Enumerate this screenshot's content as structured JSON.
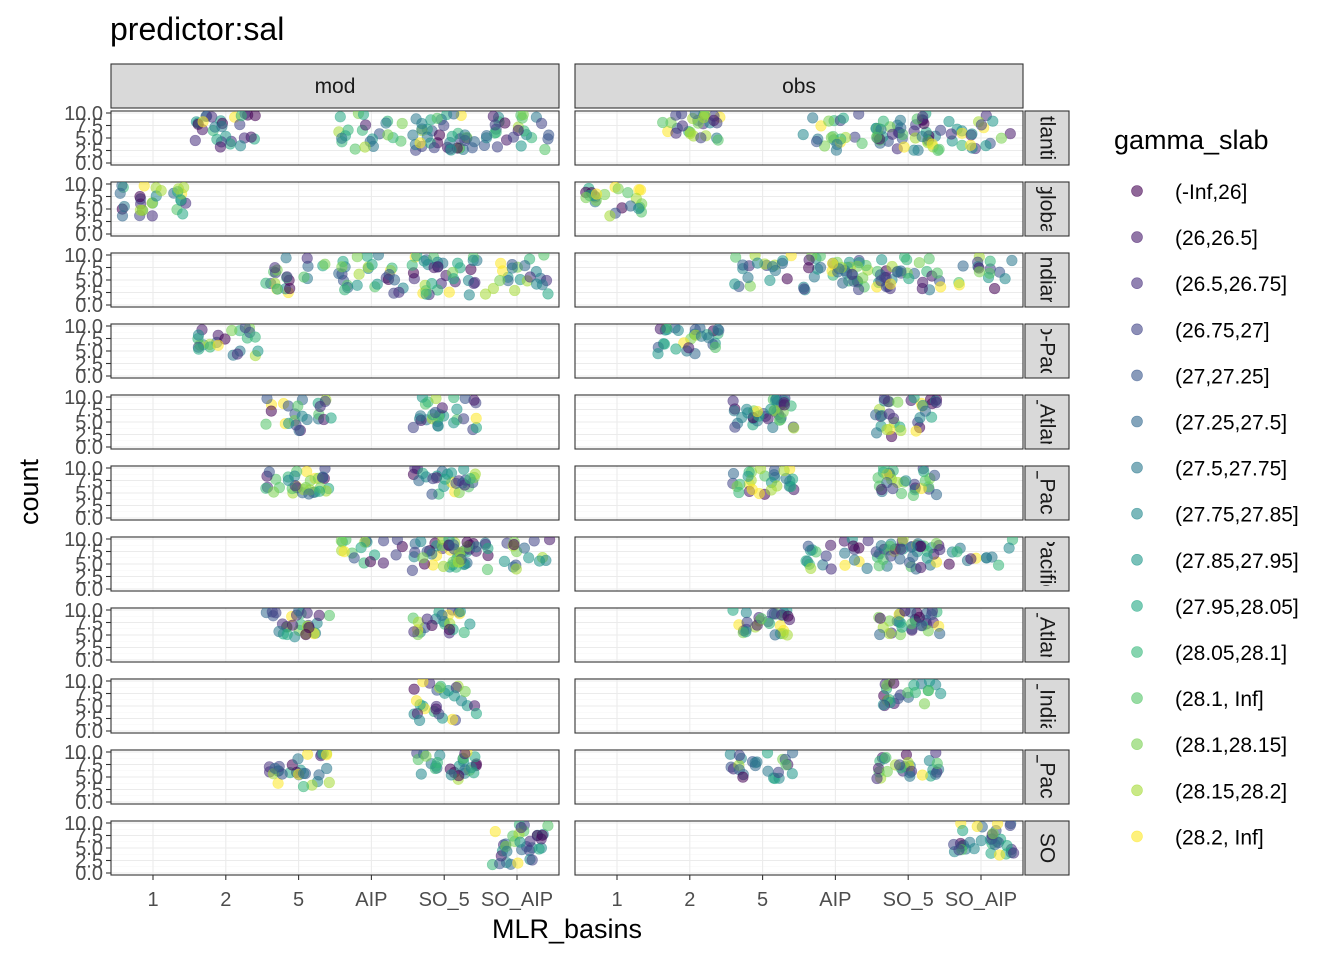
{
  "title": "predictor:sal",
  "chart_data": {
    "type": "scatter",
    "title": "predictor:sal",
    "xlabel": "MLR_basins",
    "ylabel": "count",
    "x_categories": [
      "1",
      "2",
      "5",
      "AIP",
      "SO_5",
      "SO_AIP"
    ],
    "y_ticks": [
      "0.0",
      "2.5",
      "5.0",
      "7.5",
      "10.0"
    ],
    "ylim": [
      0,
      10
    ],
    "grid": true,
    "col_facets": [
      "mod",
      "obs"
    ],
    "row_facets": [
      "Atlantic",
      "global",
      "Indian",
      "Indo-Pacific",
      "N_Atlantic",
      "N_Pacific",
      "Pacific",
      "S_Atlantic",
      "S_Indian",
      "S_Pacific",
      "SO"
    ],
    "row_facets_visible": [
      "tlanti",
      "globa",
      "ndiar",
      "o-Pac",
      "_Atlan",
      "_Paci",
      "Pacific",
      "_Atlan",
      "_India",
      "_Paci",
      "SO"
    ],
    "legend": {
      "title": "gamma_slab",
      "position": "right",
      "entries": [
        "(-Inf,26]",
        "(26,26.5]",
        "(26.5,26.75]",
        "(26.75,27]",
        "(27,27.25]",
        "(27.25,27.5]",
        "(27.5,27.75]",
        "(27.75,27.85]",
        "(27.85,27.95]",
        "(27.95,28.05]",
        "(28.05,28.1]",
        "(28.1, Inf]",
        "(28.1,28.15]",
        "(28.15,28.2]",
        "(28.2, Inf]"
      ],
      "colors": [
        "#440154",
        "#481a6c",
        "#472f7d",
        "#414487",
        "#39568c",
        "#31688e",
        "#2a788e",
        "#23888e",
        "#1f988b",
        "#22a884",
        "#35b779",
        "#54c568",
        "#7ad151",
        "#a5db36",
        "#fde725"
      ]
    },
    "point_alpha": 0.55,
    "points_note": "jittered points with y values between 2.5 and 10; each group is drawn as a jittered cloud",
    "groups": [
      {
        "row": 0,
        "col": 0,
        "x_range": [
          "2",
          "2"
        ],
        "y_range": [
          2.5,
          10
        ],
        "n": 30
      },
      {
        "row": 0,
        "col": 0,
        "x_range": [
          "AIP",
          "SO_AIP"
        ],
        "y_range": [
          2.5,
          10
        ],
        "n": 90
      },
      {
        "row": 0,
        "col": 1,
        "x_range": [
          "2",
          "2"
        ],
        "y_range": [
          4.5,
          10
        ],
        "n": 30
      },
      {
        "row": 0,
        "col": 1,
        "x_range": [
          "AIP",
          "SO_AIP"
        ],
        "y_range": [
          2.5,
          10
        ],
        "n": 90
      },
      {
        "row": 1,
        "col": 0,
        "x_range": [
          "1",
          "1"
        ],
        "y_range": [
          3.5,
          10
        ],
        "n": 30
      },
      {
        "row": 1,
        "col": 1,
        "x_range": [
          "1",
          "1"
        ],
        "y_range": [
          3.5,
          10
        ],
        "n": 25
      },
      {
        "row": 2,
        "col": 0,
        "x_range": [
          "5",
          "SO_AIP"
        ],
        "y_range": [
          2,
          10
        ],
        "n": 110
      },
      {
        "row": 2,
        "col": 1,
        "x_range": [
          "5",
          "SO_AIP"
        ],
        "y_range": [
          3,
          10
        ],
        "n": 110
      },
      {
        "row": 3,
        "col": 0,
        "x_range": [
          "2",
          "2"
        ],
        "y_range": [
          4,
          10
        ],
        "n": 25
      },
      {
        "row": 3,
        "col": 1,
        "x_range": [
          "2",
          "2"
        ],
        "y_range": [
          4,
          10
        ],
        "n": 30
      },
      {
        "row": 4,
        "col": 0,
        "x_range": [
          "5",
          "5"
        ],
        "y_range": [
          3,
          10
        ],
        "n": 25
      },
      {
        "row": 4,
        "col": 0,
        "x_range": [
          "SO_5",
          "SO_5"
        ],
        "y_range": [
          3.5,
          10
        ],
        "n": 30
      },
      {
        "row": 4,
        "col": 1,
        "x_range": [
          "5",
          "5"
        ],
        "y_range": [
          3.5,
          10
        ],
        "n": 40
      },
      {
        "row": 4,
        "col": 1,
        "x_range": [
          "SO_5",
          "SO_5"
        ],
        "y_range": [
          2,
          10
        ],
        "n": 35
      },
      {
        "row": 5,
        "col": 0,
        "x_range": [
          "5",
          "5"
        ],
        "y_range": [
          4.5,
          10
        ],
        "n": 35
      },
      {
        "row": 5,
        "col": 0,
        "x_range": [
          "SO_5",
          "SO_5"
        ],
        "y_range": [
          4.5,
          10
        ],
        "n": 30
      },
      {
        "row": 5,
        "col": 1,
        "x_range": [
          "5",
          "5"
        ],
        "y_range": [
          4.5,
          10
        ],
        "n": 30
      },
      {
        "row": 5,
        "col": 1,
        "x_range": [
          "SO_5",
          "SO_5"
        ],
        "y_range": [
          4.5,
          10
        ],
        "n": 30
      },
      {
        "row": 6,
        "col": 0,
        "x_range": [
          "AIP",
          "SO_AIP"
        ],
        "y_range": [
          3.5,
          10
        ],
        "n": 90
      },
      {
        "row": 6,
        "col": 1,
        "x_range": [
          "AIP",
          "SO_AIP"
        ],
        "y_range": [
          4,
          10
        ],
        "n": 80
      },
      {
        "row": 7,
        "col": 0,
        "x_range": [
          "5",
          "5"
        ],
        "y_range": [
          4.5,
          10
        ],
        "n": 30
      },
      {
        "row": 7,
        "col": 0,
        "x_range": [
          "SO_5",
          "SO_5"
        ],
        "y_range": [
          5,
          10
        ],
        "n": 25
      },
      {
        "row": 7,
        "col": 1,
        "x_range": [
          "5",
          "5"
        ],
        "y_range": [
          5,
          10
        ],
        "n": 30
      },
      {
        "row": 7,
        "col": 1,
        "x_range": [
          "SO_5",
          "SO_5"
        ],
        "y_range": [
          5,
          10
        ],
        "n": 35
      },
      {
        "row": 8,
        "col": 0,
        "x_range": [
          "SO_5",
          "SO_5"
        ],
        "y_range": [
          2,
          10
        ],
        "n": 30
      },
      {
        "row": 8,
        "col": 1,
        "x_range": [
          "SO_5",
          "SO_5"
        ],
        "y_range": [
          5,
          10
        ],
        "n": 25
      },
      {
        "row": 9,
        "col": 0,
        "x_range": [
          "5",
          "5"
        ],
        "y_range": [
          3,
          10
        ],
        "n": 30
      },
      {
        "row": 9,
        "col": 0,
        "x_range": [
          "SO_5",
          "SO_5"
        ],
        "y_range": [
          4.5,
          10
        ],
        "n": 30
      },
      {
        "row": 9,
        "col": 1,
        "x_range": [
          "5",
          "5"
        ],
        "y_range": [
          4.5,
          10
        ],
        "n": 25
      },
      {
        "row": 9,
        "col": 1,
        "x_range": [
          "SO_5",
          "SO_5"
        ],
        "y_range": [
          4.5,
          10
        ],
        "n": 30
      },
      {
        "row": 10,
        "col": 0,
        "x_range": [
          "SO_AIP",
          "SO_AIP"
        ],
        "y_range": [
          1.5,
          10
        ],
        "n": 35
      },
      {
        "row": 10,
        "col": 1,
        "x_range": [
          "SO_AIP",
          "SO_AIP"
        ],
        "y_range": [
          3.5,
          10
        ],
        "n": 35
      }
    ]
  }
}
